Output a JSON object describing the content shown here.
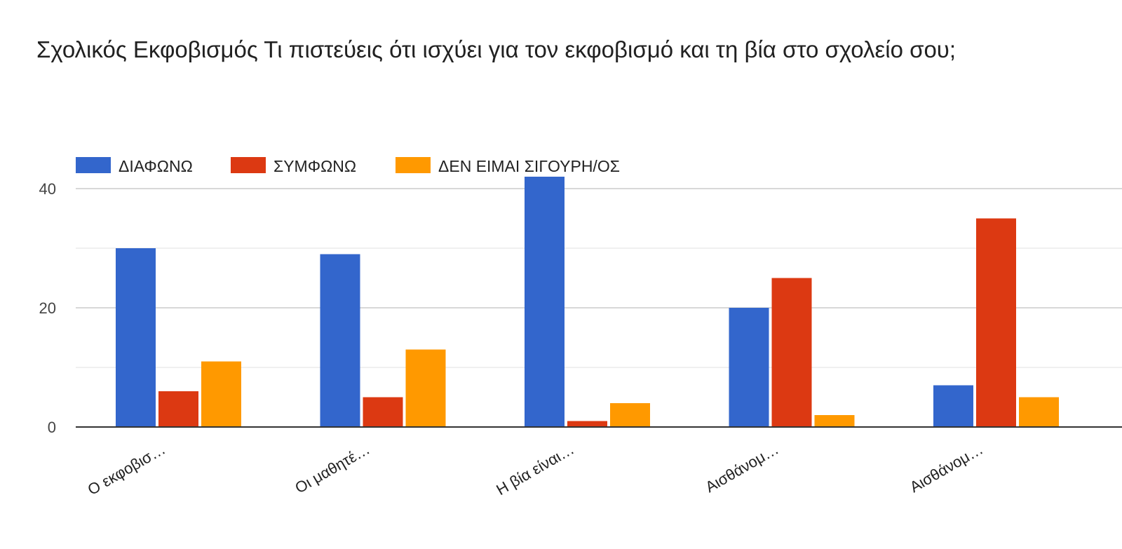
{
  "chart_data": {
    "type": "bar",
    "title": "Σχολικός Εκφοβισμός Τι πιστεύεις ότι ισχύει για τον εκφοβισμό και τη βία στο σχολείο σου;",
    "categories": [
      "Ο εκφοβισ…",
      "Οι μαθητέ…",
      "Η βία είναι…",
      "Αισθάνομ…",
      "Αισθάνομ…"
    ],
    "series": [
      {
        "name": "ΔΙΑΦΩΝΩ",
        "color": "#3366cc",
        "values": [
          30,
          29,
          42,
          20,
          7
        ]
      },
      {
        "name": "ΣΥΜΦΩΝΩ",
        "color": "#dc3912",
        "values": [
          6,
          5,
          1,
          25,
          35
        ]
      },
      {
        "name": "ΔΕΝ ΕΙΜΑΙ ΣΙΓΟΥΡΗ/ΟΣ",
        "color": "#ff9900",
        "values": [
          11,
          13,
          4,
          2,
          5
        ]
      }
    ],
    "ylim": [
      0,
      40
    ],
    "yticks": [
      0,
      20,
      40
    ],
    "minor_gridlines": [
      10,
      30
    ],
    "grid": true,
    "legend_position": "top-left",
    "xlabel": "",
    "ylabel": ""
  }
}
